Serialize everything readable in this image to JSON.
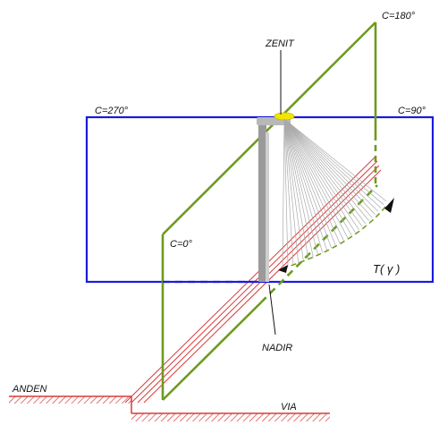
{
  "labels": {
    "c180": "C=180°",
    "zenit": "ZENIT",
    "c270": "C=270°",
    "c90": "C=90°",
    "c0": "C=0°",
    "gamma": "T( γ )",
    "nadir": "NADIR",
    "anden": "ANDEN",
    "via": "VIA"
  },
  "colors": {
    "blue_plane": "#1a1adc",
    "green_plane": "#6e9a1e",
    "red_plane": "#d83a3a",
    "pole": "#9a9a9a",
    "luminaire": "#f2e600",
    "fan": "#aaaaaa"
  }
}
